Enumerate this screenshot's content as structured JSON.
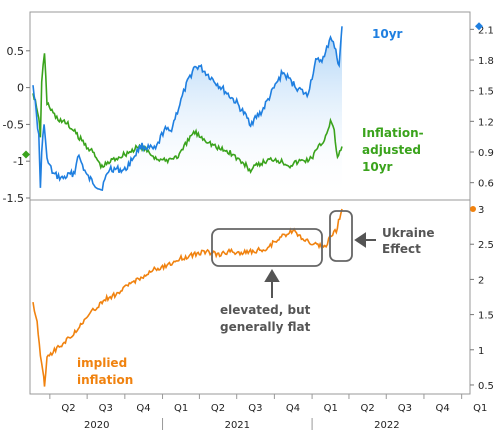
{
  "colors": {
    "nominal": "#1f7fe0",
    "real": "#3aa31c",
    "inflation": "#f0820f",
    "annotation": "#555555",
    "fill_top": "#9ecbf5",
    "fill_bottom": "#ffffff"
  },
  "chart_data": [
    {
      "type": "line",
      "panel": "top",
      "left_axis": {
        "ticks": [
          "0.5",
          "0",
          "-0.5",
          "-1",
          "-1.5"
        ],
        "ylim": [
          -1.5,
          1.0
        ]
      },
      "right_axis": {
        "ticks": [
          "2.1",
          "1.8",
          "1.5",
          "1.2",
          "0.9",
          "0.6"
        ],
        "ylim": [
          0.45,
          2.25
        ]
      },
      "series": [
        {
          "name": "10yr",
          "axis": "right",
          "x": [
            "2020-02-20",
            "2020-03-05",
            "2020-03-09",
            "2020-03-12",
            "2020-03-18",
            "2020-03-25",
            "2020-04-10",
            "2020-05-01",
            "2020-06-01",
            "2020-06-08",
            "2020-07-01",
            "2020-08-04",
            "2020-08-25",
            "2020-10-01",
            "2020-11-09",
            "2020-12-15",
            "2021-01-05",
            "2021-01-20",
            "2021-02-15",
            "2021-02-25",
            "2021-03-18",
            "2021-03-31",
            "2021-05-01",
            "2021-06-01",
            "2021-07-01",
            "2021-08-04",
            "2021-09-01",
            "2021-09-27",
            "2021-10-21",
            "2021-11-20",
            "2021-12-20",
            "2022-01-10",
            "2022-01-31",
            "2022-02-15",
            "2022-02-25",
            "2022-03-08",
            "2022-03-15"
          ],
          "y": [
            1.58,
            1.05,
            0.55,
            0.88,
            1.2,
            0.82,
            0.68,
            0.64,
            0.7,
            0.88,
            0.66,
            0.53,
            0.74,
            0.72,
            0.96,
            0.92,
            1.12,
            1.1,
            1.4,
            1.52,
            1.72,
            1.74,
            1.62,
            1.5,
            1.38,
            1.18,
            1.3,
            1.5,
            1.68,
            1.55,
            1.45,
            1.78,
            1.82,
            2.04,
            1.92,
            1.75,
            2.13
          ]
        },
        {
          "name": "Inflation-adjusted 10yr",
          "axis": "left",
          "x": [
            "2020-02-20",
            "2020-03-05",
            "2020-03-09",
            "2020-03-12",
            "2020-03-19",
            "2020-03-25",
            "2020-04-15",
            "2020-05-15",
            "2020-06-15",
            "2020-07-15",
            "2020-08-06",
            "2020-09-01",
            "2020-10-01",
            "2020-11-09",
            "2020-12-15",
            "2021-01-05",
            "2021-02-11",
            "2021-03-18",
            "2021-04-15",
            "2021-05-15",
            "2021-06-15",
            "2021-07-15",
            "2021-08-04",
            "2021-09-01",
            "2021-10-01",
            "2021-11-08",
            "2021-12-01",
            "2021-12-28",
            "2022-01-31",
            "2022-02-15",
            "2022-02-24",
            "2022-03-04",
            "2022-03-15"
          ],
          "y": [
            -0.05,
            -0.4,
            -0.7,
            0.1,
            0.45,
            -0.2,
            -0.4,
            -0.5,
            -0.7,
            -0.88,
            -1.08,
            -0.98,
            -0.9,
            -0.8,
            -0.95,
            -1.0,
            -0.92,
            -0.6,
            -0.7,
            -0.82,
            -0.88,
            -1.02,
            -1.12,
            -1.02,
            -0.96,
            -1.05,
            -1.0,
            -0.97,
            -0.7,
            -0.45,
            -0.6,
            -0.95,
            -0.8
          ]
        }
      ]
    },
    {
      "type": "line",
      "panel": "bottom",
      "axis": {
        "ticks": [
          "3",
          "2.5",
          "2",
          "1.5",
          "1",
          "0.5"
        ],
        "ylim": [
          0.4,
          3.1
        ]
      },
      "series": [
        {
          "name": "implied inflation",
          "x": [
            "2020-02-20",
            "2020-03-01",
            "2020-03-09",
            "2020-03-15",
            "2020-03-19",
            "2020-03-25",
            "2020-04-15",
            "2020-05-15",
            "2020-06-15",
            "2020-07-15",
            "2020-08-15",
            "2020-09-15",
            "2020-10-15",
            "2020-11-15",
            "2020-12-15",
            "2021-01-15",
            "2021-02-15",
            "2021-03-15",
            "2021-04-15",
            "2021-05-15",
            "2021-06-15",
            "2021-07-15",
            "2021-08-15",
            "2021-09-15",
            "2021-10-15",
            "2021-11-15",
            "2021-12-15",
            "2022-01-15",
            "2022-02-01",
            "2022-02-20",
            "2022-03-01",
            "2022-03-15"
          ],
          "y": [
            1.65,
            1.4,
            0.95,
            0.7,
            0.5,
            0.9,
            1.0,
            1.15,
            1.35,
            1.55,
            1.72,
            1.8,
            1.95,
            2.05,
            2.15,
            2.2,
            2.3,
            2.35,
            2.4,
            2.35,
            2.4,
            2.38,
            2.4,
            2.45,
            2.6,
            2.7,
            2.55,
            2.48,
            2.45,
            2.65,
            2.7,
            3.0
          ]
        }
      ]
    }
  ],
  "labels": {
    "nominal": "10yr",
    "real": [
      "Inflation-",
      "adjusted",
      "10yr"
    ],
    "inflation": [
      "implied",
      "inflation"
    ],
    "flat": [
      "elevated, but",
      "generally flat"
    ],
    "ukraine": [
      "Ukraine",
      "Effect"
    ]
  },
  "x_axis": {
    "quarters": [
      "Q2",
      "Q3",
      "Q4",
      "Q1",
      "Q2",
      "Q3",
      "Q4",
      "Q1",
      "Q2",
      "Q3",
      "Q4",
      "Q1"
    ],
    "years": [
      "2020",
      "2021",
      "2022"
    ]
  }
}
